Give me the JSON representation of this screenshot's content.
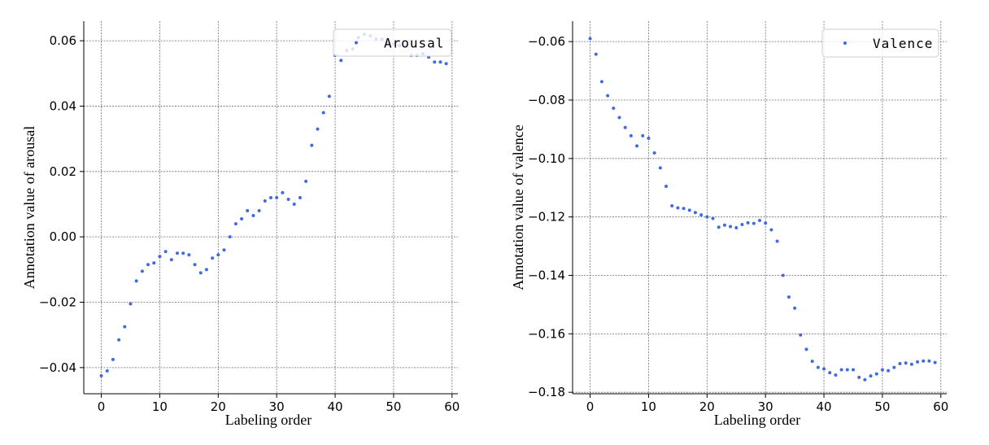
{
  "chart_data": [
    {
      "type": "scatter",
      "title": "",
      "xlabel": "Labeling order",
      "ylabel": "Annotation value of arousal",
      "xlim": [
        -3,
        61
      ],
      "ylim": [
        -0.048,
        0.066
      ],
      "xticks": [
        0,
        10,
        20,
        30,
        40,
        50,
        60
      ],
      "xtick_labels": [
        "0",
        "10",
        "20",
        "30",
        "40",
        "50",
        "60"
      ],
      "yticks": [
        -0.04,
        -0.02,
        0.0,
        0.02,
        0.04,
        0.06
      ],
      "ytick_labels": [
        "−0.04",
        "−0.02",
        "0.00",
        "0.02",
        "0.04",
        "0.06"
      ],
      "grid": true,
      "legend_position": "top-right",
      "color": "#4169e1",
      "series": [
        {
          "name": "Arousal",
          "x": [
            0,
            1,
            2,
            3,
            4,
            5,
            6,
            7,
            8,
            9,
            10,
            11,
            12,
            13,
            14,
            15,
            16,
            17,
            18,
            19,
            20,
            21,
            22,
            23,
            24,
            25,
            26,
            27,
            28,
            29,
            30,
            31,
            32,
            33,
            34,
            35,
            36,
            37,
            38,
            39,
            40,
            41,
            42,
            43,
            44,
            45,
            46,
            47,
            48,
            49,
            50,
            51,
            52,
            53,
            54,
            55,
            56,
            57,
            58,
            59
          ],
          "y": [
            -0.0425,
            -0.041,
            -0.0375,
            -0.0315,
            -0.0275,
            -0.0205,
            -0.0135,
            -0.0105,
            -0.0085,
            -0.008,
            -0.006,
            -0.0045,
            -0.007,
            -0.005,
            -0.005,
            -0.0055,
            -0.0085,
            -0.011,
            -0.01,
            -0.0065,
            -0.0055,
            -0.004,
            -0.0,
            0.004,
            0.0055,
            0.008,
            0.0065,
            0.008,
            0.011,
            0.012,
            0.012,
            0.0135,
            0.0115,
            0.01,
            0.012,
            0.017,
            0.028,
            0.033,
            0.038,
            0.043,
            0.0555,
            0.054,
            0.057,
            0.0575,
            0.061,
            0.062,
            0.0615,
            0.0605,
            0.0605,
            0.0595,
            0.059,
            0.0585,
            0.0585,
            0.0555,
            0.0555,
            0.056,
            0.055,
            0.0535,
            0.0535,
            0.053
          ]
        }
      ]
    },
    {
      "type": "scatter",
      "title": "",
      "xlabel": "Labeling order",
      "ylabel": "Annotation value of valence",
      "xlim": [
        -3,
        61
      ],
      "ylim": [
        -0.1805,
        -0.053
      ],
      "xticks": [
        0,
        10,
        20,
        30,
        40,
        50,
        60
      ],
      "xtick_labels": [
        "0",
        "10",
        "20",
        "30",
        "40",
        "50",
        "60"
      ],
      "yticks": [
        -0.06,
        -0.08,
        -0.1,
        -0.12,
        -0.14,
        -0.16,
        -0.18
      ],
      "ytick_labels": [
        "−0.06",
        "−0.08",
        "−0.10",
        "−0.12",
        "−0.14",
        "−0.16",
        "−0.18"
      ],
      "grid": true,
      "legend_position": "top-right",
      "color": "#4169e1",
      "series": [
        {
          "name": "Valence",
          "x": [
            0,
            1,
            2,
            3,
            4,
            5,
            6,
            7,
            8,
            9,
            10,
            11,
            12,
            13,
            14,
            15,
            16,
            17,
            18,
            19,
            20,
            21,
            22,
            23,
            24,
            25,
            26,
            27,
            28,
            29,
            30,
            31,
            32,
            33,
            34,
            35,
            36,
            37,
            38,
            39,
            40,
            41,
            42,
            43,
            44,
            45,
            46,
            47,
            48,
            49,
            50,
            51,
            52,
            53,
            54,
            55,
            56,
            57,
            58,
            59
          ],
          "y": [
            -0.059,
            -0.0643,
            -0.0737,
            -0.0785,
            -0.0828,
            -0.086,
            -0.0894,
            -0.0922,
            -0.0957,
            -0.0922,
            -0.0931,
            -0.0981,
            -0.1032,
            -0.1095,
            -0.1162,
            -0.1169,
            -0.1171,
            -0.1177,
            -0.1185,
            -0.1193,
            -0.12,
            -0.1205,
            -0.1235,
            -0.1228,
            -0.1233,
            -0.1237,
            -0.1226,
            -0.122,
            -0.1222,
            -0.1212,
            -0.1221,
            -0.1244,
            -0.1283,
            -0.14,
            -0.1474,
            -0.1512,
            -0.1604,
            -0.1653,
            -0.1694,
            -0.1715,
            -0.172,
            -0.1733,
            -0.1741,
            -0.1723,
            -0.1723,
            -0.1723,
            -0.1749,
            -0.1757,
            -0.1744,
            -0.1737,
            -0.1723,
            -0.1726,
            -0.1715,
            -0.1702,
            -0.17,
            -0.1704,
            -0.1696,
            -0.1693,
            -0.1693,
            -0.1698
          ]
        }
      ]
    }
  ]
}
